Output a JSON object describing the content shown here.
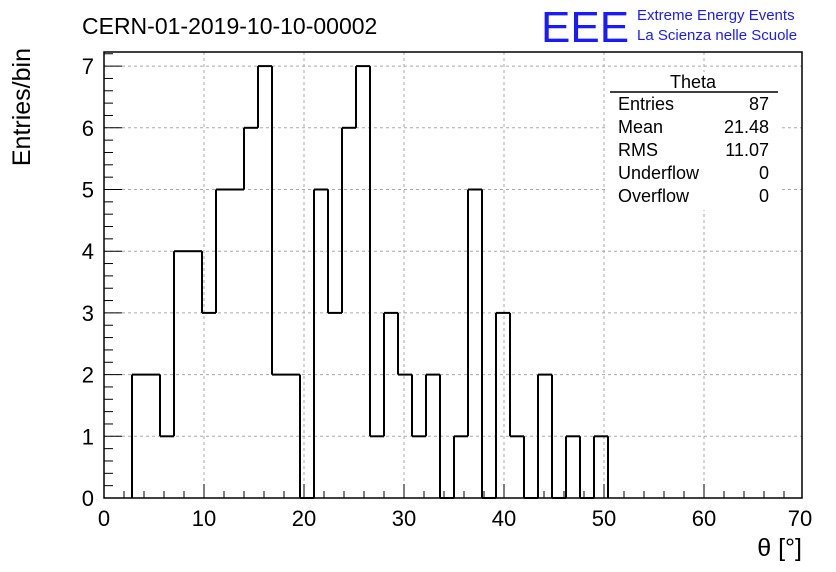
{
  "header": {
    "run_id": "CERN-01-2019-10-10-00002",
    "logo": "EEE",
    "logo_line1": "Extreme Energy Events",
    "logo_line2": "La Scienza nelle Scuole"
  },
  "stats": {
    "title": "Theta",
    "rows": [
      {
        "label": "Entries",
        "value": "87"
      },
      {
        "label": "Mean",
        "value": "21.48"
      },
      {
        "label": "RMS",
        "value": "11.07"
      },
      {
        "label": "Underflow",
        "value": "0"
      },
      {
        "label": "Overflow",
        "value": "0"
      }
    ]
  },
  "colors": {
    "line": "#000000",
    "grid": "#aaaaaa",
    "logo": "#1a1aff"
  },
  "chart_data": {
    "type": "bar",
    "style": "step-histogram",
    "xlabel": "θ [°]",
    "ylabel": "Entries/bin",
    "xlim": [
      0,
      70
    ],
    "ylim": [
      0,
      7.3
    ],
    "xticks": [
      0,
      10,
      20,
      30,
      40,
      50,
      60,
      70
    ],
    "yticks": [
      0,
      1,
      2,
      3,
      4,
      5,
      6,
      7
    ],
    "grid": true,
    "bin_width": 1.4,
    "bins": [
      {
        "x0": 2.8,
        "value": 2
      },
      {
        "x0": 4.2,
        "value": 2
      },
      {
        "x0": 5.6,
        "value": 1
      },
      {
        "x0": 7.0,
        "value": 4
      },
      {
        "x0": 8.4,
        "value": 4
      },
      {
        "x0": 9.8,
        "value": 3
      },
      {
        "x0": 11.2,
        "value": 5
      },
      {
        "x0": 12.6,
        "value": 5
      },
      {
        "x0": 14.0,
        "value": 6
      },
      {
        "x0": 15.4,
        "value": 7
      },
      {
        "x0": 16.8,
        "value": 2
      },
      {
        "x0": 18.2,
        "value": 2
      },
      {
        "x0": 19.6,
        "value": 0
      },
      {
        "x0": 21.0,
        "value": 5
      },
      {
        "x0": 22.4,
        "value": 3
      },
      {
        "x0": 23.8,
        "value": 6
      },
      {
        "x0": 25.2,
        "value": 7
      },
      {
        "x0": 26.6,
        "value": 1
      },
      {
        "x0": 28.0,
        "value": 3
      },
      {
        "x0": 29.4,
        "value": 2
      },
      {
        "x0": 30.8,
        "value": 1
      },
      {
        "x0": 32.2,
        "value": 2
      },
      {
        "x0": 33.6,
        "value": 0
      },
      {
        "x0": 35.0,
        "value": 1
      },
      {
        "x0": 36.4,
        "value": 5
      },
      {
        "x0": 37.8,
        "value": 0
      },
      {
        "x0": 39.2,
        "value": 3
      },
      {
        "x0": 40.6,
        "value": 1
      },
      {
        "x0": 42.0,
        "value": 0
      },
      {
        "x0": 43.4,
        "value": 2
      },
      {
        "x0": 44.8,
        "value": 0
      },
      {
        "x0": 46.2,
        "value": 1
      },
      {
        "x0": 47.6,
        "value": 0
      },
      {
        "x0": 49.0,
        "value": 1
      }
    ]
  }
}
